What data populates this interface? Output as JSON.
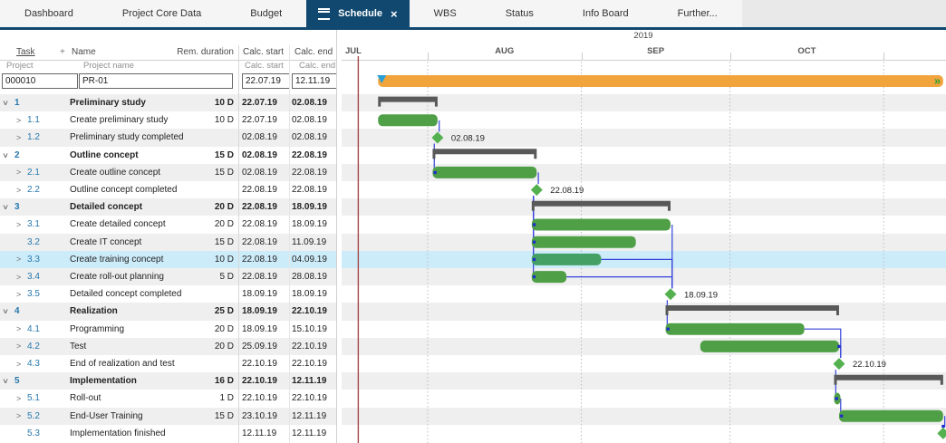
{
  "tabs": [
    {
      "label": "Dashboard",
      "active": false
    },
    {
      "label": "Project Core Data",
      "active": false
    },
    {
      "label": "Budget",
      "active": false
    },
    {
      "label": "Schedule",
      "active": true
    },
    {
      "label": "WBS",
      "active": false
    },
    {
      "label": "Status",
      "active": false
    },
    {
      "label": "Info Board",
      "active": false
    },
    {
      "label": "Further...",
      "active": false
    }
  ],
  "icons": {
    "close": "×",
    "hamburger": "menu",
    "project_continues": "»"
  },
  "table": {
    "headers": {
      "task": "Task",
      "plus": "+",
      "name": "Name",
      "rem": "Rem. duration",
      "start": "Calc. start",
      "end": "Calc. end"
    },
    "subheader": {
      "task": "Project",
      "name": "Project name",
      "start": "Calc. start",
      "end": "Calc. end"
    },
    "project_row": {
      "id": "000010",
      "name": "PR-01",
      "start": "22.07.19",
      "end": "12.11.19"
    },
    "rows": [
      {
        "id": "1",
        "name": "Preliminary study",
        "rem": "10 D",
        "start": "22.07.19",
        "end": "02.08.19",
        "level": 0,
        "type": "summary",
        "chevron": "down"
      },
      {
        "id": "1.1",
        "name": "Create preliminary study",
        "rem": "10 D",
        "start": "22.07.19",
        "end": "02.08.19",
        "level": 1,
        "type": "task",
        "chevron": "right"
      },
      {
        "id": "1.2",
        "name": "Preliminary study completed",
        "rem": "",
        "start": "02.08.19",
        "end": "02.08.19",
        "level": 1,
        "type": "milestone",
        "chevron": "right",
        "ms_label": true
      },
      {
        "id": "2",
        "name": "Outline concept",
        "rem": "15 D",
        "start": "02.08.19",
        "end": "22.08.19",
        "level": 0,
        "type": "summary",
        "chevron": "down"
      },
      {
        "id": "2.1",
        "name": "Create outline concept",
        "rem": "15 D",
        "start": "02.08.19",
        "end": "22.08.19",
        "level": 1,
        "type": "task",
        "chevron": "right"
      },
      {
        "id": "2.2",
        "name": "Outline concept completed",
        "rem": "",
        "start": "22.08.19",
        "end": "22.08.19",
        "level": 1,
        "type": "milestone",
        "chevron": "right",
        "ms_label": true
      },
      {
        "id": "3",
        "name": "Detailed concept",
        "rem": "20 D",
        "start": "22.08.19",
        "end": "18.09.19",
        "level": 0,
        "type": "summary",
        "chevron": "down"
      },
      {
        "id": "3.1",
        "name": "Create detailed concept",
        "rem": "20 D",
        "start": "22.08.19",
        "end": "18.09.19",
        "level": 1,
        "type": "task",
        "chevron": "right"
      },
      {
        "id": "3.2",
        "name": "Create IT concept",
        "rem": "15 D",
        "start": "22.08.19",
        "end": "11.09.19",
        "level": 1,
        "type": "task",
        "chevron": "none"
      },
      {
        "id": "3.3",
        "name": "Create training concept",
        "rem": "10 D",
        "start": "22.08.19",
        "end": "04.09.19",
        "level": 1,
        "type": "task",
        "chevron": "right",
        "highlight": true
      },
      {
        "id": "3.4",
        "name": "Create roll-out planning",
        "rem": "5 D",
        "start": "22.08.19",
        "end": "28.08.19",
        "level": 1,
        "type": "task",
        "chevron": "right"
      },
      {
        "id": "3.5",
        "name": "Detailed concept completed",
        "rem": "",
        "start": "18.09.19",
        "end": "18.09.19",
        "level": 1,
        "type": "milestone",
        "chevron": "right",
        "ms_label": true
      },
      {
        "id": "4",
        "name": "Realization",
        "rem": "25 D",
        "start": "18.09.19",
        "end": "22.10.19",
        "level": 0,
        "type": "summary",
        "chevron": "down"
      },
      {
        "id": "4.1",
        "name": "Programming",
        "rem": "20 D",
        "start": "18.09.19",
        "end": "15.10.19",
        "level": 1,
        "type": "task",
        "chevron": "right"
      },
      {
        "id": "4.2",
        "name": "Test",
        "rem": "20 D",
        "start": "25.09.19",
        "end": "22.10.19",
        "level": 1,
        "type": "task",
        "chevron": "right"
      },
      {
        "id": "4.3",
        "name": "End of realization and test",
        "rem": "",
        "start": "22.10.19",
        "end": "22.10.19",
        "level": 1,
        "type": "milestone",
        "chevron": "right",
        "ms_label": true
      },
      {
        "id": "5",
        "name": "Implementation",
        "rem": "16 D",
        "start": "22.10.19",
        "end": "12.11.19",
        "level": 0,
        "type": "summary",
        "chevron": "down"
      },
      {
        "id": "5.1",
        "name": "Roll-out",
        "rem": "1 D",
        "start": "22.10.19",
        "end": "22.10.19",
        "level": 1,
        "type": "task",
        "chevron": "right"
      },
      {
        "id": "5.2",
        "name": "End-User Training",
        "rem": "15 D",
        "start": "23.10.19",
        "end": "12.11.19",
        "level": 1,
        "type": "task",
        "chevron": "right"
      },
      {
        "id": "5.3",
        "name": "Implementation finished",
        "rem": "",
        "start": "12.11.19",
        "end": "12.11.19",
        "level": 1,
        "type": "milestone",
        "chevron": "none",
        "ms_label": false,
        "top_dot": true
      }
    ]
  },
  "gantt": {
    "year": "2019",
    "months": [
      "JUL",
      "AUG",
      "SEP",
      "OCT"
    ],
    "project": {
      "start": "22.07.19",
      "end": "12.11.19",
      "continues_marker": "»"
    },
    "today": "18.07.19",
    "dependencies": [
      {
        "from": "1.1",
        "to": "1.2"
      },
      {
        "from": "1.2",
        "to": "2.1"
      },
      {
        "from": "2.1",
        "to": "2.2"
      },
      {
        "from": "2.2",
        "to": "3.1"
      },
      {
        "from": "2.2",
        "to": "3.2"
      },
      {
        "from": "2.2",
        "to": "3.3"
      },
      {
        "from": "2.2",
        "to": "3.4"
      },
      {
        "from": "3.1",
        "to": "3.5"
      },
      {
        "from": "3.3",
        "to": "3.5"
      },
      {
        "from": "3.4",
        "to": "3.5"
      },
      {
        "from": "3.5",
        "to": "4.1"
      },
      {
        "from": "4.1",
        "to": "4.3"
      },
      {
        "from": "4.2",
        "to": "4.3"
      },
      {
        "from": "4.3",
        "to": "5.1"
      },
      {
        "from": "5.1",
        "to": "5.2"
      },
      {
        "from": "5.2",
        "to": "5.3"
      }
    ],
    "end_dots": [
      "4.2"
    ]
  },
  "theme": {
    "accent_dark_blue": "#10486f",
    "bar_green": "#4f9f47",
    "bar_green_selected": "#45a065",
    "bar_orange": "#f2a43c",
    "summary_gray": "#595959",
    "milestone_green": "#55b14f",
    "connector_blue": "#3442d9",
    "dot_blue": "#1d2fcc",
    "today_red": "#a34848",
    "row_stripe": "#efefef",
    "row_highlight": "#cdecfa",
    "start_triangle_cyan": "#2aa0d4",
    "continue_arrow_green": "#2f9e33"
  }
}
